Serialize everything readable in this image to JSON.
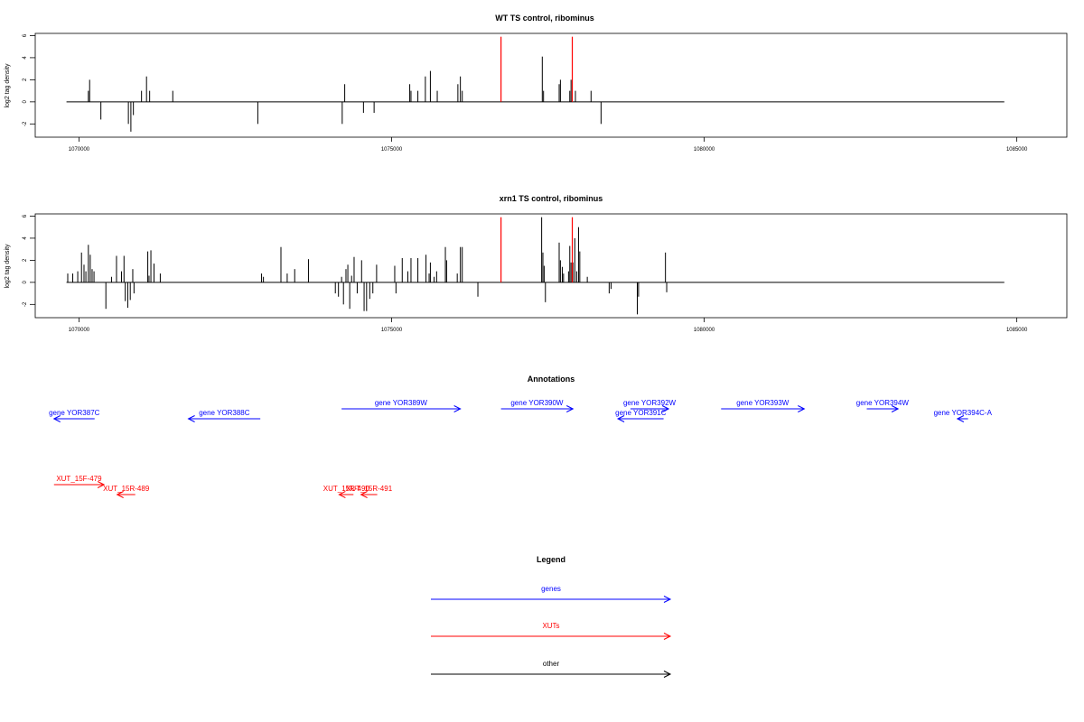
{
  "chart_data": [
    {
      "type": "bar",
      "title": "WT TS control, ribominus",
      "ylabel": "log2 tag density",
      "xlim": [
        1069300,
        1085800
      ],
      "ylim": [
        -3.2,
        6.2
      ],
      "xticks": [
        "1070000",
        "1075000",
        "1080000",
        "1085000"
      ],
      "yticks": [
        "6",
        "4",
        "2",
        "0",
        "-2"
      ],
      "baseline": [
        1069800,
        1084800
      ],
      "highlight_color": "#ff0000",
      "bar_color": "#000000",
      "bars": [
        {
          "x": 1070150,
          "y": 1.0
        },
        {
          "x": 1070170,
          "y": 2.0
        },
        {
          "x": 1070350,
          "y": -1.6
        },
        {
          "x": 1070790,
          "y": -2.0
        },
        {
          "x": 1070830,
          "y": -2.7
        },
        {
          "x": 1070870,
          "y": -1.2
        },
        {
          "x": 1071000,
          "y": 1.0
        },
        {
          "x": 1071080,
          "y": 2.3
        },
        {
          "x": 1071130,
          "y": 1.0
        },
        {
          "x": 1071500,
          "y": 1.0
        },
        {
          "x": 1072860,
          "y": -2.0
        },
        {
          "x": 1074210,
          "y": -2.0
        },
        {
          "x": 1074250,
          "y": 1.6
        },
        {
          "x": 1074550,
          "y": -1.0
        },
        {
          "x": 1074720,
          "y": -1.0
        },
        {
          "x": 1075290,
          "y": 1.6
        },
        {
          "x": 1075310,
          "y": 1.0
        },
        {
          "x": 1075420,
          "y": 1.0
        },
        {
          "x": 1075540,
          "y": 2.3
        },
        {
          "x": 1075620,
          "y": 2.8
        },
        {
          "x": 1075730,
          "y": 1.0
        },
        {
          "x": 1076060,
          "y": 1.6
        },
        {
          "x": 1076100,
          "y": 2.3
        },
        {
          "x": 1076130,
          "y": 1.0
        },
        {
          "x": 1077410,
          "y": 4.1
        },
        {
          "x": 1077430,
          "y": 1.0
        },
        {
          "x": 1077680,
          "y": 1.6
        },
        {
          "x": 1077700,
          "y": 2.0
        },
        {
          "x": 1077850,
          "y": 1.0
        },
        {
          "x": 1077870,
          "y": 2.0
        },
        {
          "x": 1077940,
          "y": 1.0
        },
        {
          "x": 1078190,
          "y": 1.0
        },
        {
          "x": 1078350,
          "y": -2.0
        }
      ],
      "highlight_bars": [
        {
          "x": 1076750,
          "y": 5.9
        },
        {
          "x": 1077890,
          "y": 5.9
        }
      ]
    },
    {
      "type": "bar",
      "title": "xrn1 TS control, ribominus",
      "ylabel": "log2 tag density",
      "xlim": [
        1069300,
        1085800
      ],
      "ylim": [
        -3.2,
        6.2
      ],
      "xticks": [
        "1070000",
        "1075000",
        "1080000",
        "1085000"
      ],
      "yticks": [
        "6",
        "4",
        "2",
        "0",
        "-2"
      ],
      "baseline": [
        1069800,
        1084800
      ],
      "highlight_color": "#ff0000",
      "bar_color": "#000000",
      "bars": [
        {
          "x": 1069820,
          "y": 0.8
        },
        {
          "x": 1069900,
          "y": 0.8
        },
        {
          "x": 1069980,
          "y": 1.0
        },
        {
          "x": 1070040,
          "y": 2.7
        },
        {
          "x": 1070080,
          "y": 1.6
        },
        {
          "x": 1070110,
          "y": 1.0
        },
        {
          "x": 1070150,
          "y": 3.4
        },
        {
          "x": 1070180,
          "y": 2.5
        },
        {
          "x": 1070210,
          "y": 1.2
        },
        {
          "x": 1070240,
          "y": 1.0
        },
        {
          "x": 1070430,
          "y": -2.4
        },
        {
          "x": 1070520,
          "y": 0.5
        },
        {
          "x": 1070600,
          "y": 2.4
        },
        {
          "x": 1070680,
          "y": 1.0
        },
        {
          "x": 1070720,
          "y": 2.4
        },
        {
          "x": 1070740,
          "y": -1.7
        },
        {
          "x": 1070780,
          "y": -2.3
        },
        {
          "x": 1070820,
          "y": -1.6
        },
        {
          "x": 1070860,
          "y": 1.2
        },
        {
          "x": 1070880,
          "y": -1.0
        },
        {
          "x": 1071100,
          "y": 2.8
        },
        {
          "x": 1071120,
          "y": 0.6
        },
        {
          "x": 1071150,
          "y": 2.9
        },
        {
          "x": 1071200,
          "y": 1.7
        },
        {
          "x": 1071300,
          "y": 0.8
        },
        {
          "x": 1072920,
          "y": 0.8
        },
        {
          "x": 1072950,
          "y": 0.5
        },
        {
          "x": 1073230,
          "y": 3.2
        },
        {
          "x": 1073330,
          "y": 0.8
        },
        {
          "x": 1073450,
          "y": 1.2
        },
        {
          "x": 1073670,
          "y": 2.1
        },
        {
          "x": 1074100,
          "y": -1.0
        },
        {
          "x": 1074150,
          "y": -1.3
        },
        {
          "x": 1074200,
          "y": 0.5
        },
        {
          "x": 1074230,
          "y": -2.0
        },
        {
          "x": 1074270,
          "y": 1.2
        },
        {
          "x": 1074300,
          "y": 1.6
        },
        {
          "x": 1074330,
          "y": -2.4
        },
        {
          "x": 1074360,
          "y": 0.6
        },
        {
          "x": 1074400,
          "y": 2.3
        },
        {
          "x": 1074450,
          "y": -1.0
        },
        {
          "x": 1074520,
          "y": 2.0
        },
        {
          "x": 1074560,
          "y": -2.6
        },
        {
          "x": 1074600,
          "y": -2.6
        },
        {
          "x": 1074650,
          "y": -1.5
        },
        {
          "x": 1074700,
          "y": -1.0
        },
        {
          "x": 1074760,
          "y": 1.6
        },
        {
          "x": 1075050,
          "y": 1.5
        },
        {
          "x": 1075070,
          "y": -1.0
        },
        {
          "x": 1075170,
          "y": 2.2
        },
        {
          "x": 1075260,
          "y": 1.0
        },
        {
          "x": 1075310,
          "y": 2.2
        },
        {
          "x": 1075420,
          "y": 2.2
        },
        {
          "x": 1075550,
          "y": 2.5
        },
        {
          "x": 1075600,
          "y": 0.8
        },
        {
          "x": 1075620,
          "y": 1.8
        },
        {
          "x": 1075680,
          "y": 0.5
        },
        {
          "x": 1075720,
          "y": 1.0
        },
        {
          "x": 1075860,
          "y": 3.2
        },
        {
          "x": 1075880,
          "y": 2.0
        },
        {
          "x": 1076050,
          "y": 0.8
        },
        {
          "x": 1076100,
          "y": 3.2
        },
        {
          "x": 1076130,
          "y": 3.2
        },
        {
          "x": 1076380,
          "y": -1.3
        },
        {
          "x": 1077400,
          "y": 5.9
        },
        {
          "x": 1077420,
          "y": 2.7
        },
        {
          "x": 1077440,
          "y": 1.5
        },
        {
          "x": 1077460,
          "y": -1.8
        },
        {
          "x": 1077680,
          "y": 3.6
        },
        {
          "x": 1077700,
          "y": 2.0
        },
        {
          "x": 1077730,
          "y": 1.4
        },
        {
          "x": 1077750,
          "y": 0.8
        },
        {
          "x": 1077830,
          "y": 1.0
        },
        {
          "x": 1077850,
          "y": 3.3
        },
        {
          "x": 1077870,
          "y": 1.8
        },
        {
          "x": 1077900,
          "y": 1.8
        },
        {
          "x": 1077930,
          "y": 4.0
        },
        {
          "x": 1077960,
          "y": 1.0
        },
        {
          "x": 1077990,
          "y": 5.0
        },
        {
          "x": 1078010,
          "y": 2.8
        },
        {
          "x": 1078130,
          "y": 0.5
        },
        {
          "x": 1078480,
          "y": -1.0
        },
        {
          "x": 1078510,
          "y": -0.6
        },
        {
          "x": 1078930,
          "y": -2.9
        },
        {
          "x": 1078950,
          "y": -1.3
        },
        {
          "x": 1079380,
          "y": 2.7
        },
        {
          "x": 1079400,
          "y": -0.9
        }
      ],
      "highlight_bars": [
        {
          "x": 1076750,
          "y": 5.9
        },
        {
          "x": 1077890,
          "y": 5.9
        }
      ]
    }
  ],
  "annotations": {
    "title": "Annotations",
    "items": [
      {
        "label": "gene YOR387C",
        "start": 1070250,
        "end": 1069600,
        "row": 2,
        "color": "#0000ff"
      },
      {
        "label": "gene YOR388C",
        "start": 1072900,
        "end": 1071750,
        "row": 2,
        "color": "#0000ff"
      },
      {
        "label": "gene YOR389W",
        "start": 1074200,
        "end": 1076100,
        "row": 1,
        "color": "#0000ff"
      },
      {
        "label": "gene YOR390W",
        "start": 1076750,
        "end": 1077900,
        "row": 1,
        "color": "#0000ff"
      },
      {
        "label": "gene YOR391C",
        "start": 1079350,
        "end": 1078620,
        "row": 2,
        "color": "#0000ff"
      },
      {
        "label": "gene YOR392W",
        "start": 1078820,
        "end": 1079430,
        "row": 1,
        "color": "#0000ff"
      },
      {
        "label": "gene YOR393W",
        "start": 1080270,
        "end": 1081600,
        "row": 1,
        "color": "#0000ff"
      },
      {
        "label": "gene YOR394W",
        "start": 1082600,
        "end": 1083100,
        "row": 1,
        "color": "#0000ff"
      },
      {
        "label": "gene YOR394C-A",
        "start": 1084220,
        "end": 1084050,
        "row": 2,
        "color": "#0000ff"
      },
      {
        "label": "XUT_15F-479",
        "start": 1069600,
        "end": 1070400,
        "row": 3,
        "color": "#ff0000"
      },
      {
        "label": "XUT_15R-489",
        "start": 1070900,
        "end": 1070610,
        "row": 4,
        "color": "#ff0000"
      },
      {
        "label": "XUT_15R-490",
        "start": 1074390,
        "end": 1074160,
        "row": 4,
        "color": "#ff0000"
      },
      {
        "label": "XUT_15R-491",
        "start": 1074770,
        "end": 1074510,
        "row": 4,
        "color": "#ff0000"
      }
    ]
  },
  "legend": {
    "title": "Legend",
    "items": [
      {
        "label": "genes",
        "color": "#0000ff"
      },
      {
        "label": "XUTs",
        "color": "#ff0000"
      },
      {
        "label": "other",
        "color": "#000000"
      }
    ]
  }
}
